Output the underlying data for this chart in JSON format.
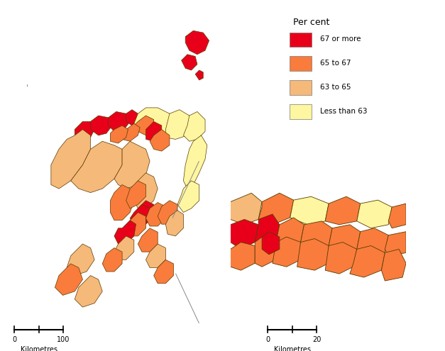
{
  "legend_title": "Per cent",
  "legend_items": [
    {
      "label": "67 or more",
      "color": "#e8001a"
    },
    {
      "label": "65 to 67",
      "color": "#f97c3c"
    },
    {
      "label": "63 to 65",
      "color": "#f5b97a"
    },
    {
      "label": "Less than 63",
      "color": "#fef6a0"
    }
  ],
  "background_color": "#ffffff",
  "border_color": "#5a3a00",
  "fig_width": 6.27,
  "fig_height": 4.95,
  "dpi": 100,
  "scale_label": "Kilometres"
}
